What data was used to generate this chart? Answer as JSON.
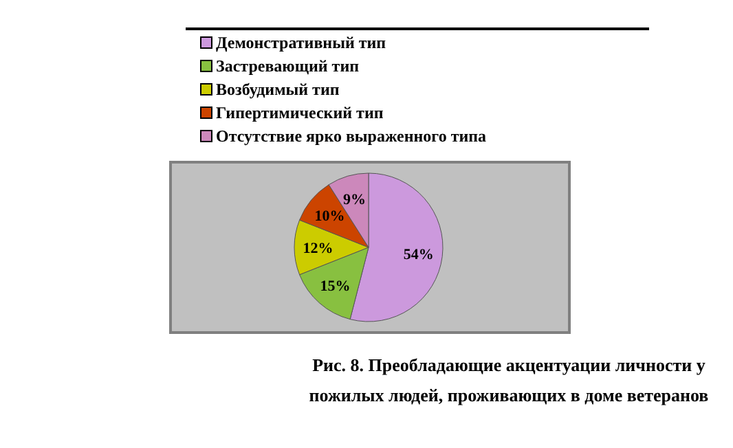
{
  "chart_data": {
    "type": "pie",
    "title": "Рис. 8. Преобладающие акцентуации личности у пожилых людей, проживающих в доме ветеранов",
    "categories": [
      "Демонстративный тип",
      "Застревающий  тип",
      "Возбудимый тип",
      "Гипертимический тип",
      "Отсутствие ярко выраженного типа"
    ],
    "values": [
      54,
      15,
      12,
      10,
      9
    ],
    "colors": [
      "#cc99dd",
      "#88c040",
      "#cccc00",
      "#cc4400",
      "#cc88bb"
    ],
    "value_labels": [
      "54%",
      "15%",
      "12%",
      "10%",
      "9%"
    ],
    "legend": "top"
  }
}
